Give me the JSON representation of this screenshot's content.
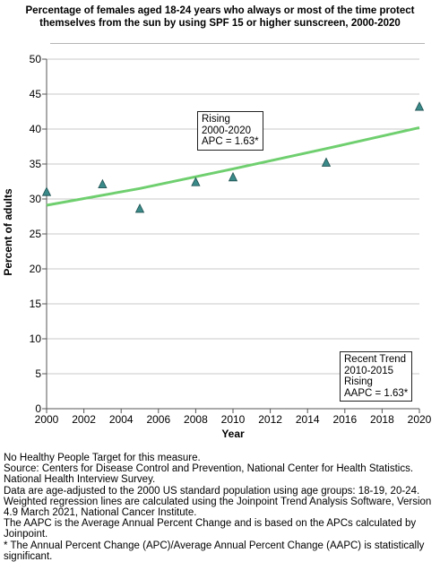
{
  "chart_data": {
    "type": "scatter",
    "title": "Percentage of females aged 18-24 years who always or most of the time protect themselves from the sun by using SPF 15 or higher sunscreen, 2000-2020",
    "xlabel": "Year",
    "ylabel": "Percent of adults",
    "xlim": [
      2000,
      2020
    ],
    "ylim": [
      0,
      50
    ],
    "x_ticks": [
      2000,
      2002,
      2004,
      2006,
      2008,
      2010,
      2012,
      2014,
      2016,
      2018,
      2020
    ],
    "y_ticks": [
      0,
      5,
      10,
      15,
      20,
      25,
      30,
      35,
      40,
      45,
      50
    ],
    "grid": "horizontal",
    "series": [
      {
        "type": "scatter",
        "marker": "triangle",
        "color": "#3a8a8a",
        "x": [
          2000,
          2003,
          2005,
          2008,
          2010,
          2015,
          2020
        ],
        "y": [
          31.0,
          32.1,
          28.6,
          32.4,
          33.1,
          35.2,
          43.2
        ]
      },
      {
        "type": "line",
        "color": "#6fcf6f",
        "x": [
          2000,
          2005,
          2010,
          2015,
          2020
        ],
        "y": [
          29.1,
          31.5,
          34.3,
          37.2,
          40.2
        ]
      }
    ],
    "annotations": [
      {
        "id": "rising",
        "lines": [
          "Rising",
          "2000-2020",
          "APC =  1.63*"
        ]
      },
      {
        "id": "recent",
        "lines": [
          "Recent Trend",
          "2010-2015",
          "Rising",
          "AAPC =  1.63*"
        ]
      }
    ]
  },
  "notes": [
    "No Healthy People Target for this measure.",
    "Source: Centers for Disease Control and Prevention, National Center for Health Statistics. National Health Interview Survey.",
    "Data are age-adjusted to the 2000 US standard population using age groups: 18-19, 20-24.",
    "Weighted regression lines are calculated using the Joinpoint Trend Analysis Software, Version 4.9 March 2021, National Cancer Institute.",
    "The AAPC is the Average Annual Percent Change and is based on the APCs calculated by Joinpoint.",
    "* The Annual Percent Change (APC)/Average Annual Percent Change (AAPC) is statistically significant."
  ]
}
